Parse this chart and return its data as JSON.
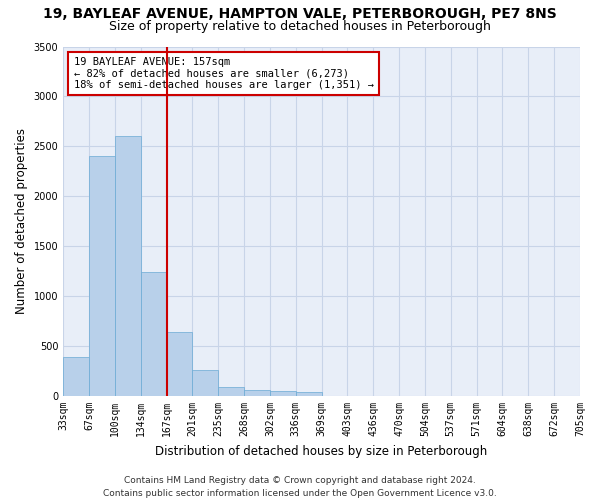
{
  "title": "19, BAYLEAF AVENUE, HAMPTON VALE, PETERBOROUGH, PE7 8NS",
  "subtitle": "Size of property relative to detached houses in Peterborough",
  "xlabel": "Distribution of detached houses by size in Peterborough",
  "ylabel": "Number of detached properties",
  "bar_values": [
    390,
    2400,
    2600,
    1240,
    640,
    260,
    95,
    60,
    55,
    40,
    0,
    0,
    0,
    0,
    0,
    0,
    0,
    0,
    0,
    0
  ],
  "categories": [
    "33sqm",
    "67sqm",
    "100sqm",
    "134sqm",
    "167sqm",
    "201sqm",
    "235sqm",
    "268sqm",
    "302sqm",
    "336sqm",
    "369sqm",
    "403sqm",
    "436sqm",
    "470sqm",
    "504sqm",
    "537sqm",
    "571sqm",
    "604sqm",
    "638sqm",
    "672sqm",
    "705sqm"
  ],
  "bar_color": "#b8d0ea",
  "bar_edge_color": "#6aaad4",
  "grid_color": "#c8d4e8",
  "bg_color": "#e8eef8",
  "vline_color": "#cc0000",
  "vline_x_bin": 3.5,
  "annotation_text": "19 BAYLEAF AVENUE: 157sqm\n← 82% of detached houses are smaller (6,273)\n18% of semi-detached houses are larger (1,351) →",
  "annotation_box_color": "#ffffff",
  "annotation_box_edge": "#cc0000",
  "ylim": [
    0,
    3500
  ],
  "yticks": [
    0,
    500,
    1000,
    1500,
    2000,
    2500,
    3000,
    3500
  ],
  "footnote": "Contains HM Land Registry data © Crown copyright and database right 2024.\nContains public sector information licensed under the Open Government Licence v3.0.",
  "title_fontsize": 10,
  "subtitle_fontsize": 9,
  "xlabel_fontsize": 8.5,
  "ylabel_fontsize": 8.5,
  "tick_fontsize": 7,
  "annot_fontsize": 7.5,
  "footnote_fontsize": 6.5
}
